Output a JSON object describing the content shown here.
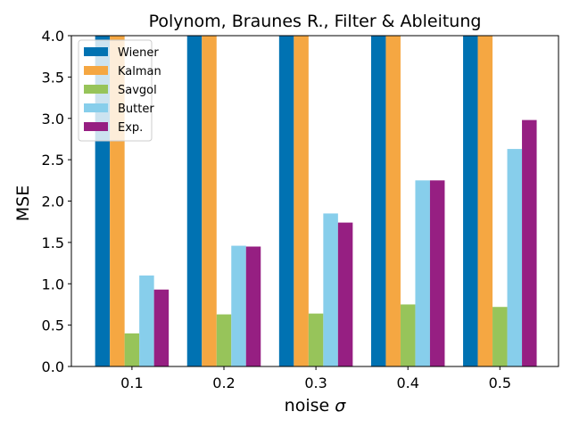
{
  "chart_data": {
    "type": "bar",
    "title": "Polynom, Braunes R., Filter & Ableitung",
    "xlabel": "noise",
    "xlabel_symbol": "σ",
    "ylabel": "MSE",
    "categories": [
      "0.1",
      "0.2",
      "0.3",
      "0.4",
      "0.5"
    ],
    "yticks": [
      "0.0",
      "0.5",
      "1.0",
      "1.5",
      "2.0",
      "2.5",
      "3.0",
      "3.5",
      "4.0"
    ],
    "ylim": [
      0,
      4.0
    ],
    "grid": false,
    "legend_position": "upper-left",
    "series": [
      {
        "name": "Wiener",
        "color": "#0072b2",
        "values": [
          4.0,
          4.0,
          4.0,
          4.0,
          4.0
        ]
      },
      {
        "name": "Kalman",
        "color": "#f5a742",
        "values": [
          4.0,
          4.0,
          4.0,
          4.0,
          4.0
        ]
      },
      {
        "name": "Savgol",
        "color": "#97c45a",
        "values": [
          0.4,
          0.63,
          0.64,
          0.75,
          0.72
        ]
      },
      {
        "name": "Butter",
        "color": "#87ceeb",
        "values": [
          1.1,
          1.46,
          1.85,
          2.25,
          2.63
        ]
      },
      {
        "name": "Exp.",
        "color": "#961f82",
        "values": [
          0.93,
          1.45,
          1.74,
          2.25,
          2.98
        ]
      }
    ]
  }
}
